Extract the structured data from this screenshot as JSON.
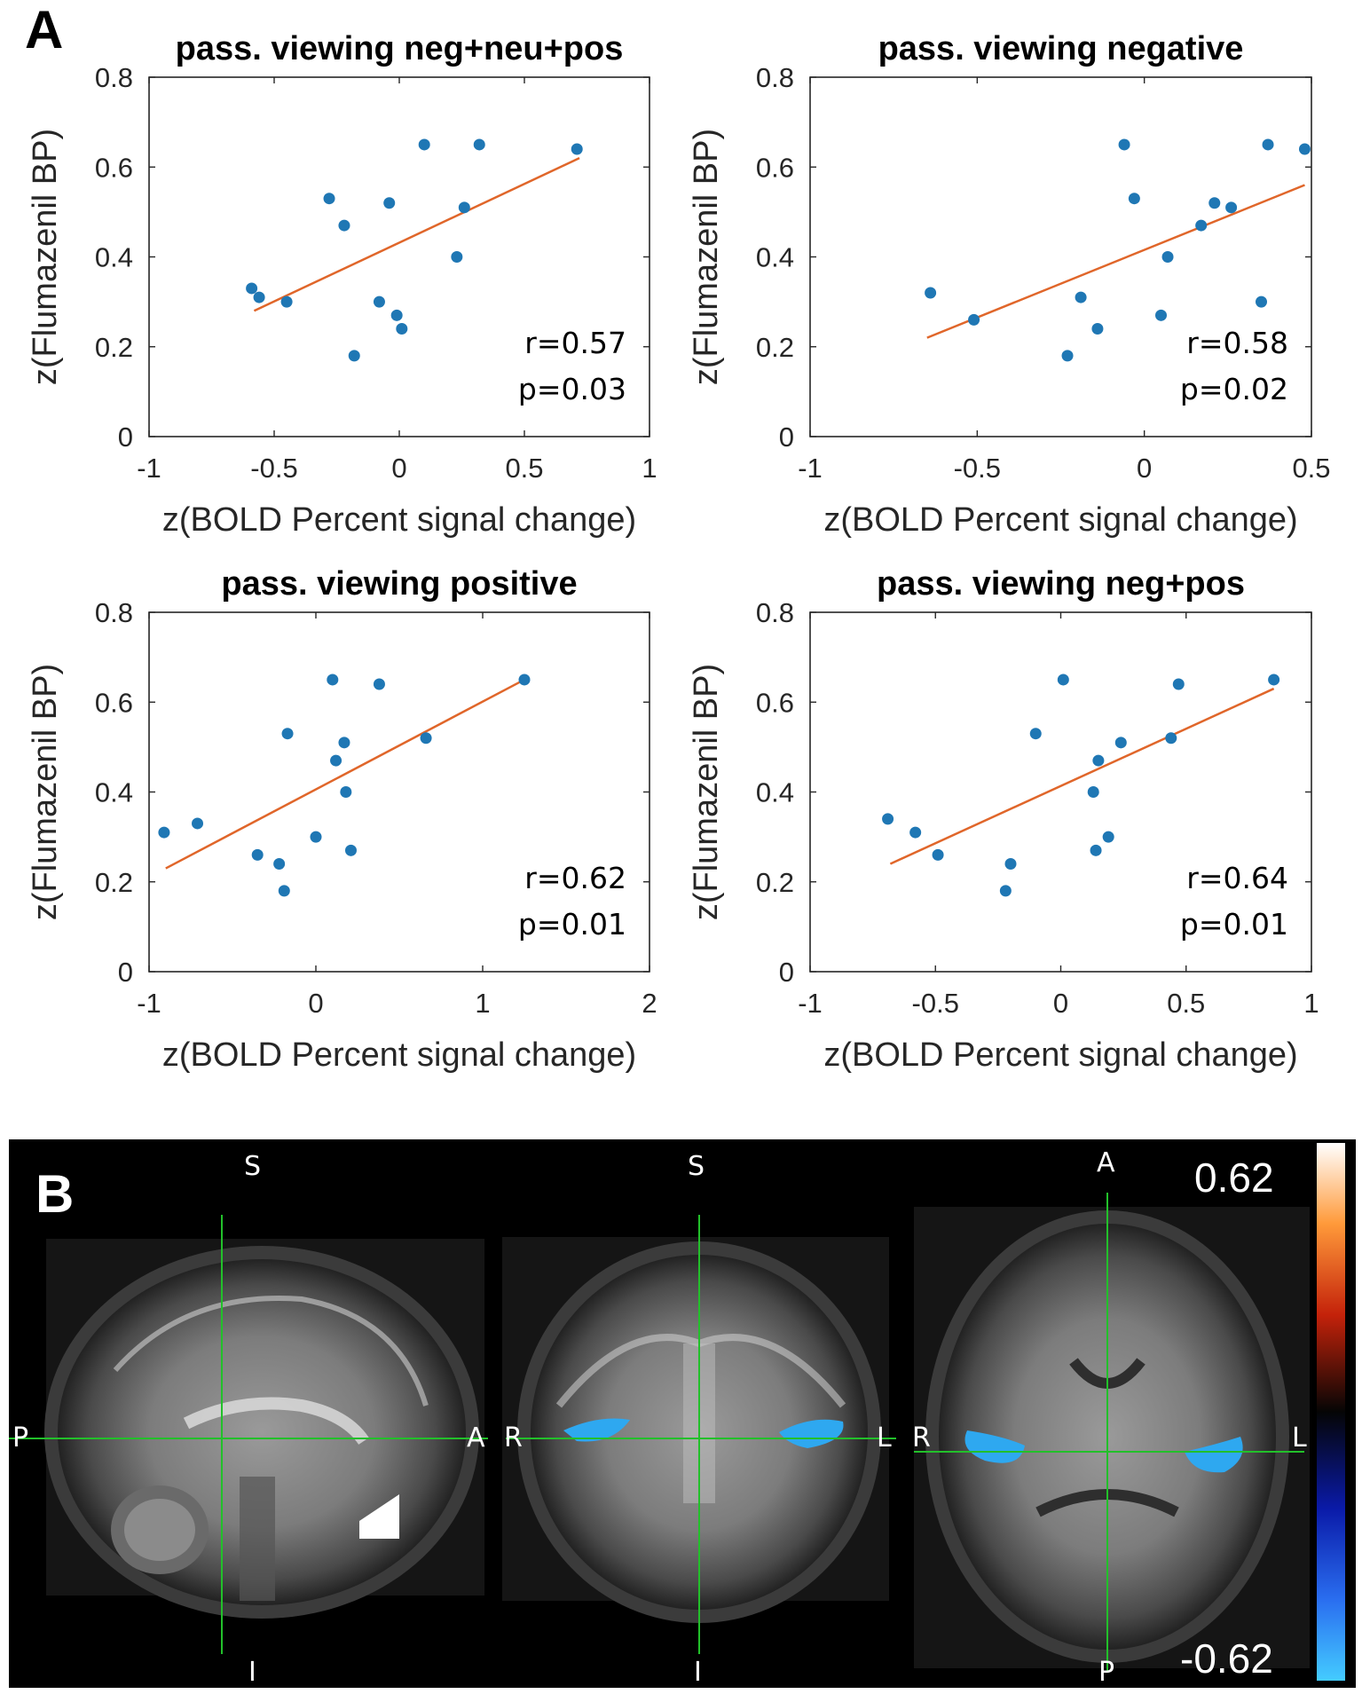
{
  "panel_a_letter": "A",
  "panel_b_letter": "B",
  "chart_data": [
    {
      "type": "scatter",
      "title": "pass. viewing neg+neu+pos",
      "xlabel": "z(BOLD Percent signal change)",
      "ylabel": "z(Flumazenil BP)",
      "xlim": [
        -1,
        1
      ],
      "ylim": [
        0,
        0.8
      ],
      "xticks": [
        -1,
        -0.5,
        0,
        0.5,
        1
      ],
      "xtick_labels": [
        "-1",
        "-0.5",
        "0",
        "0.5",
        "1"
      ],
      "yticks": [
        0,
        0.2,
        0.4,
        0.6,
        0.8
      ],
      "ytick_labels": [
        "0",
        "0.2",
        "0.4",
        "0.6",
        "0.8"
      ],
      "x": [
        -0.59,
        -0.56,
        -0.45,
        -0.28,
        -0.22,
        -0.18,
        -0.08,
        -0.04,
        -0.01,
        0.01,
        0.1,
        0.23,
        0.26,
        0.32,
        0.71
      ],
      "y": [
        0.33,
        0.31,
        0.3,
        0.53,
        0.47,
        0.18,
        0.3,
        0.52,
        0.27,
        0.24,
        0.65,
        0.4,
        0.51,
        0.65,
        0.64
      ],
      "fit_line": {
        "x": [
          -0.58,
          0.72
        ],
        "y": [
          0.28,
          0.62
        ]
      },
      "stats": [
        "r=0.57",
        "p=0.03"
      ]
    },
    {
      "type": "scatter",
      "title": "pass. viewing negative",
      "xlabel": "z(BOLD Percent signal change)",
      "ylabel": "z(Flumazenil BP)",
      "xlim": [
        -1,
        0.5
      ],
      "ylim": [
        0,
        0.8
      ],
      "xticks": [
        -1,
        -0.5,
        0,
        0.5
      ],
      "xtick_labels": [
        "-1",
        "-0.5",
        "0",
        "0.5"
      ],
      "yticks": [
        0,
        0.2,
        0.4,
        0.6,
        0.8
      ],
      "ytick_labels": [
        "0",
        "0.2",
        "0.4",
        "0.6",
        "0.8"
      ],
      "x": [
        -0.64,
        -0.51,
        -0.23,
        -0.19,
        -0.14,
        -0.06,
        -0.03,
        0.05,
        0.07,
        0.17,
        0.21,
        0.26,
        0.35,
        0.37,
        0.48
      ],
      "y": [
        0.32,
        0.26,
        0.18,
        0.31,
        0.24,
        0.65,
        0.53,
        0.27,
        0.4,
        0.47,
        0.52,
        0.51,
        0.3,
        0.65,
        0.64
      ],
      "fit_line": {
        "x": [
          -0.65,
          0.48
        ],
        "y": [
          0.22,
          0.56
        ]
      },
      "stats": [
        "r=0.58",
        "p=0.02"
      ]
    },
    {
      "type": "scatter",
      "title": "pass. viewing positive",
      "xlabel": "z(BOLD Percent signal change)",
      "ylabel": "z(Flumazenil BP)",
      "xlim": [
        -1,
        2
      ],
      "ylim": [
        0,
        0.8
      ],
      "xticks": [
        -1,
        0,
        1,
        2
      ],
      "xtick_labels": [
        "-1",
        "0",
        "1",
        "2"
      ],
      "yticks": [
        0,
        0.2,
        0.4,
        0.6,
        0.8
      ],
      "ytick_labels": [
        "0",
        "0.2",
        "0.4",
        "0.6",
        "0.8"
      ],
      "x": [
        -0.91,
        -0.71,
        -0.35,
        -0.22,
        -0.19,
        -0.17,
        0,
        0.1,
        0.12,
        0.17,
        0.18,
        0.21,
        0.38,
        0.66,
        1.25
      ],
      "y": [
        0.31,
        0.33,
        0.26,
        0.24,
        0.18,
        0.53,
        0.3,
        0.65,
        0.47,
        0.51,
        0.4,
        0.27,
        0.64,
        0.52,
        0.65
      ],
      "fit_line": {
        "x": [
          -0.9,
          1.25
        ],
        "y": [
          0.23,
          0.65
        ]
      },
      "stats": [
        "r=0.62",
        "p=0.01"
      ]
    },
    {
      "type": "scatter",
      "title": "pass. viewing neg+pos",
      "xlabel": "z(BOLD Percent signal change)",
      "ylabel": "z(Flumazenil BP)",
      "xlim": [
        -1,
        1
      ],
      "ylim": [
        0,
        0.8
      ],
      "xticks": [
        -1,
        -0.5,
        0,
        0.5,
        1
      ],
      "xtick_labels": [
        "-1",
        "-0.5",
        "0",
        "0.5",
        "1"
      ],
      "yticks": [
        0,
        0.2,
        0.4,
        0.6,
        0.8
      ],
      "ytick_labels": [
        "0",
        "0.2",
        "0.4",
        "0.6",
        "0.8"
      ],
      "x": [
        -0.69,
        -0.58,
        -0.49,
        -0.2,
        -0.22,
        -0.1,
        0.01,
        0.13,
        0.14,
        0.15,
        0.19,
        0.24,
        0.44,
        0.47,
        0.85
      ],
      "y": [
        0.34,
        0.31,
        0.26,
        0.24,
        0.18,
        0.53,
        0.65,
        0.4,
        0.27,
        0.47,
        0.3,
        0.51,
        0.52,
        0.64,
        0.65
      ],
      "fit_line": {
        "x": [
          -0.68,
          0.85
        ],
        "y": [
          0.24,
          0.63
        ]
      },
      "stats": [
        "r=0.64",
        "p=0.01"
      ]
    }
  ],
  "brain": {
    "views": [
      {
        "name": "sagittal",
        "top": "S",
        "bottom": "I",
        "left": "P",
        "right": "A"
      },
      {
        "name": "coronal",
        "top": "S",
        "bottom": "I",
        "left": "R",
        "right": "L"
      },
      {
        "name": "axial",
        "top": "A",
        "bottom": "P",
        "left": "R",
        "right": "L"
      }
    ],
    "colorbar": {
      "max_label": "0.62",
      "min_label": "-0.62"
    },
    "colors": {
      "background": "#000000",
      "crosshair": "#22c02a",
      "highlight": "#2ea8f0",
      "roi_white": "#ffffff"
    }
  },
  "colors": {
    "points": "#1f77b4",
    "fit_line": "#e0662a"
  }
}
